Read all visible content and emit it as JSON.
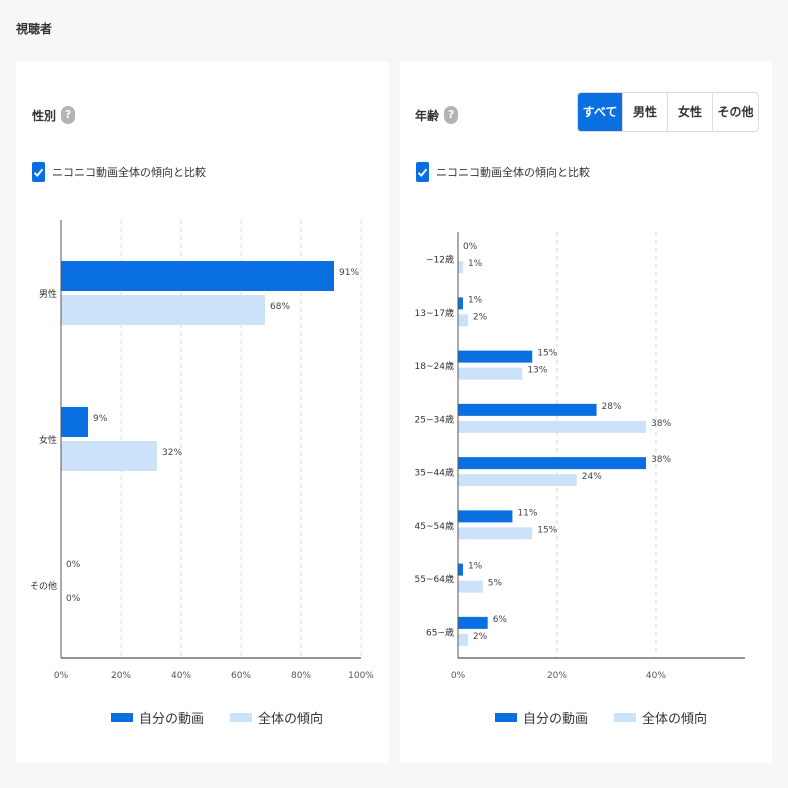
{
  "section_title": "視聴者",
  "gender": {
    "title": "性別",
    "help": "?",
    "compare_label": "ニコニコ動画全体の傾向と比較"
  },
  "age": {
    "title": "年齢",
    "help": "?",
    "compare_label": "ニコニコ動画全体の傾向と比較",
    "filters": [
      {
        "label": "すべて",
        "active": true
      },
      {
        "label": "男性",
        "active": false
      },
      {
        "label": "女性",
        "active": false
      },
      {
        "label": "その他",
        "active": false
      }
    ]
  },
  "legend": {
    "own": "自分の動画",
    "all": "全体の傾向"
  },
  "colors": {
    "own": "#0a6fe0",
    "all": "#cce2f8",
    "axis": "#555555",
    "grid": "#d8d8d8"
  },
  "chart_data": [
    {
      "type": "bar",
      "orientation": "horizontal",
      "categories": [
        "男性",
        "女性",
        "その他"
      ],
      "series": [
        {
          "name": "自分の動画",
          "values": [
            91,
            9,
            0
          ]
        },
        {
          "name": "全体の傾向",
          "values": [
            68,
            32,
            0
          ]
        }
      ],
      "xlim": [
        0,
        100
      ],
      "xticks": [
        "0%",
        "20%",
        "40%",
        "60%",
        "80%",
        "100%"
      ],
      "xtick_values": [
        0,
        20,
        40,
        60,
        80,
        100
      ],
      "value_suffix": "%",
      "grid": true,
      "legend_placement": "bottom"
    },
    {
      "type": "bar",
      "orientation": "horizontal",
      "categories": [
        "~12歳",
        "13~17歳",
        "18~24歳",
        "25~34歳",
        "35~44歳",
        "45~54歳",
        "55~64歳",
        "65~歳"
      ],
      "series": [
        {
          "name": "自分の動画",
          "values": [
            0,
            1,
            15,
            28,
            38,
            11,
            1,
            6
          ]
        },
        {
          "name": "全体の傾向",
          "values": [
            1,
            2,
            13,
            38,
            24,
            15,
            5,
            2
          ]
        }
      ],
      "xlim": [
        0,
        58
      ],
      "xticks": [
        "0%",
        "20%",
        "40%"
      ],
      "xtick_values": [
        0,
        20,
        40
      ],
      "value_suffix": "%",
      "grid": true,
      "legend_placement": "bottom"
    }
  ]
}
